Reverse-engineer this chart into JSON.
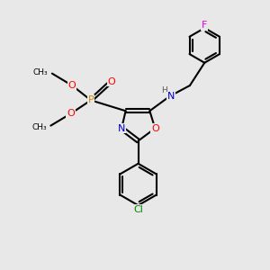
{
  "background_color": "#e8e8e8",
  "bond_color": "#000000",
  "atom_colors": {
    "O": "#ff0000",
    "N": "#0000cc",
    "P": "#cc8800",
    "Cl": "#008800",
    "F": "#dd00dd",
    "H": "#555555",
    "C": "#000000"
  },
  "figsize": [
    3.0,
    3.0
  ],
  "dpi": 100
}
